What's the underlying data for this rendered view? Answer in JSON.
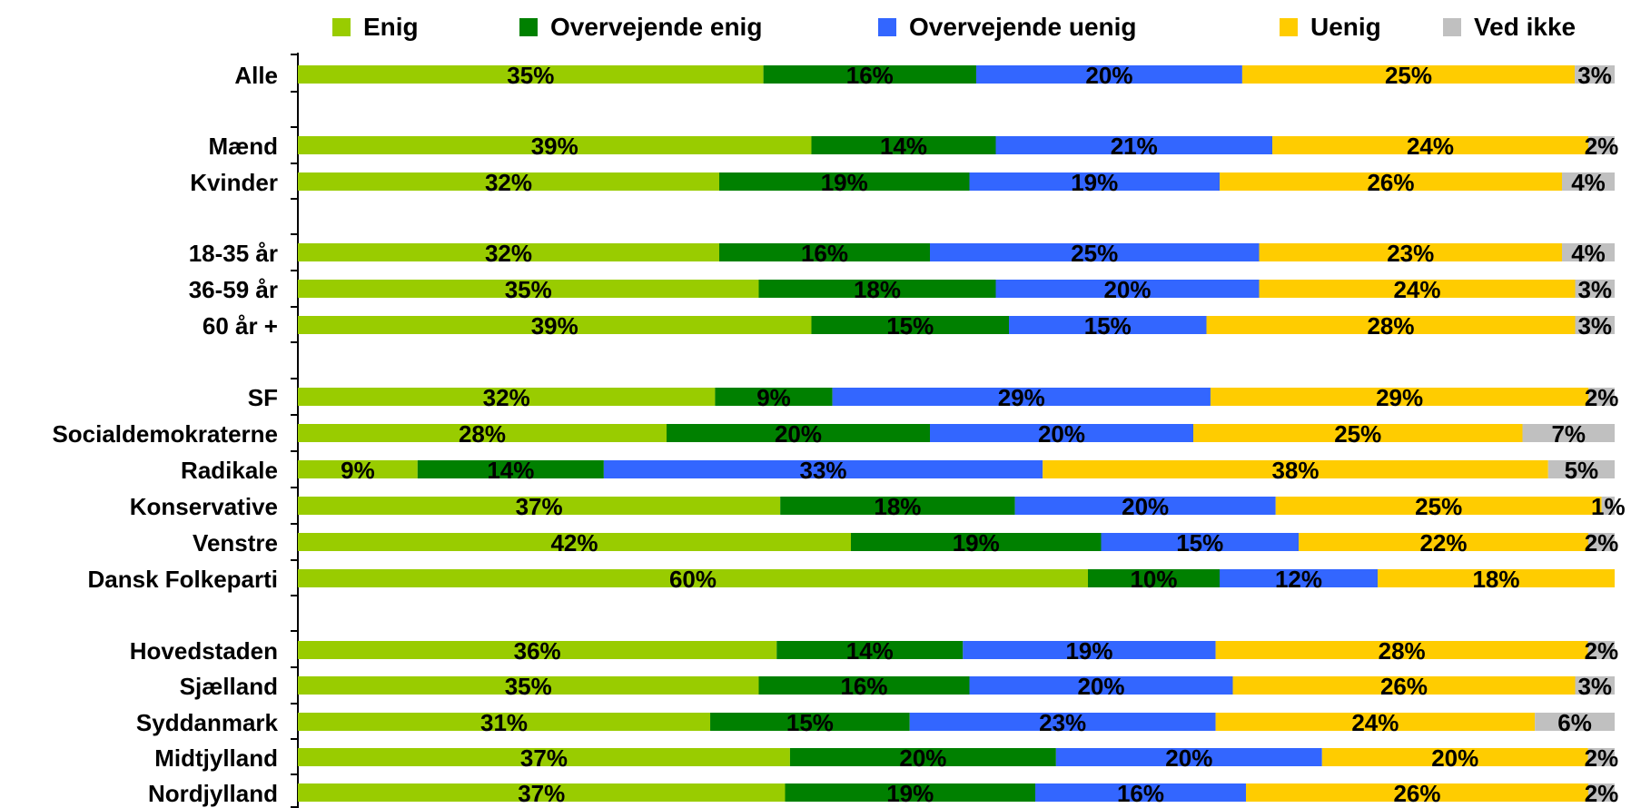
{
  "chart_data": {
    "type": "bar",
    "orientation": "horizontal",
    "stacked": true,
    "percent": true,
    "legend_position": "top",
    "grid": false,
    "series": [
      {
        "name": "Enig",
        "color": "#99cc00",
        "values": [
          35,
          39,
          32,
          32,
          35,
          39,
          32,
          28,
          9,
          37,
          42,
          60,
          36,
          35,
          31,
          37,
          37
        ]
      },
      {
        "name": "Overvejende enig",
        "color": "#008000",
        "values": [
          16,
          14,
          19,
          16,
          18,
          15,
          9,
          20,
          14,
          18,
          19,
          10,
          14,
          16,
          15,
          20,
          19
        ]
      },
      {
        "name": "Overvejende uenig",
        "color": "#3366ff",
        "values": [
          20,
          21,
          19,
          25,
          20,
          15,
          29,
          20,
          33,
          20,
          15,
          12,
          19,
          20,
          23,
          20,
          16
        ]
      },
      {
        "name": "Uenig",
        "color": "#ffcc00",
        "values": [
          25,
          24,
          26,
          23,
          24,
          28,
          29,
          25,
          38,
          25,
          22,
          18,
          28,
          26,
          24,
          20,
          26
        ]
      },
      {
        "name": "Ved ikke",
        "color": "#c0c0c0",
        "values": [
          3,
          2,
          4,
          4,
          3,
          3,
          2,
          7,
          5,
          1,
          2,
          0,
          2,
          3,
          6,
          2,
          2
        ]
      }
    ],
    "categories": [
      "Alle",
      "Mænd",
      "Kvinder",
      "18-35 år",
      "36-59 år",
      "60 år +",
      "SF",
      "Socialdemokraterne",
      "Radikale",
      "Konservative",
      "Venstre",
      "Dansk Folkeparti",
      "Hovedstaden",
      "Sjælland",
      "Syddanmark",
      "Midtjylland",
      "Nordjylland"
    ],
    "labels": [
      [
        "35%",
        "16%",
        "20%",
        "25%",
        "3%"
      ],
      [
        "39%",
        "14%",
        "21%",
        "24%",
        "2%"
      ],
      [
        "32%",
        "19%",
        "19%",
        "26%",
        "4%"
      ],
      [
        "32%",
        "16%",
        "25%",
        "23%",
        "4%"
      ],
      [
        "35%",
        "18%",
        "20%",
        "24%",
        "3%"
      ],
      [
        "39%",
        "15%",
        "15%",
        "28%",
        "3%"
      ],
      [
        "32%",
        "9%",
        "29%",
        "29%",
        "2%"
      ],
      [
        "28%",
        "20%",
        "20%",
        "25%",
        "7%"
      ],
      [
        "9%",
        "14%",
        "33%",
        "38%",
        "5%"
      ],
      [
        "37%",
        "18%",
        "20%",
        "25%",
        "1%"
      ],
      [
        "42%",
        "19%",
        "15%",
        "22%",
        "2%"
      ],
      [
        "60%",
        "10%",
        "12%",
        "18%",
        ""
      ],
      [
        "36%",
        "14%",
        "19%",
        "28%",
        "2%"
      ],
      [
        "35%",
        "16%",
        "20%",
        "26%",
        "3%"
      ],
      [
        "31%",
        "15%",
        "23%",
        "24%",
        "6%"
      ],
      [
        "37%",
        "20%",
        "20%",
        "20%",
        "2%"
      ],
      [
        "37%",
        "19%",
        "16%",
        "26%",
        "2%"
      ]
    ]
  }
}
